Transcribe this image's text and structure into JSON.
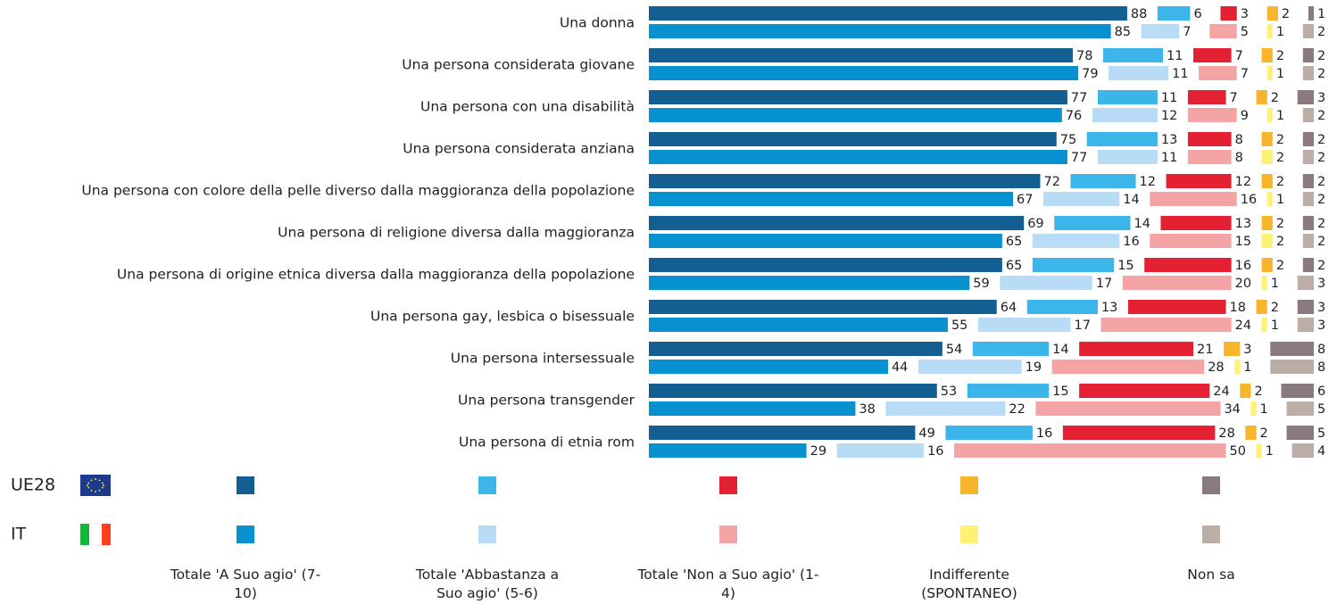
{
  "chart_data": {
    "type": "bar",
    "orientation": "horizontal",
    "stacked": true,
    "categories": [
      "Una donna",
      "Una persona considerata giovane",
      "Una persona con una disabilità",
      "Una persona considerata anziana",
      "Una persona con colore della pelle diverso dalla maggioranza della popolazione",
      "Una persona di religione diversa dalla maggioranza",
      "Una persona di origine etnica diversa dalla maggioranza della popolazione",
      "Una persona gay, lesbica o bisessuale",
      "Una persona intersessuale",
      "Una persona transgender",
      "Una persona di etnia rom"
    ],
    "groups": [
      "UE28",
      "IT"
    ],
    "series": [
      {
        "name": "Totale 'A Suo agio' (7-10)",
        "colors": [
          "#135f92",
          "#0891d1"
        ],
        "values": [
          [
            88,
            78,
            77,
            75,
            72,
            69,
            65,
            64,
            54,
            53,
            49
          ],
          [
            85,
            79,
            76,
            77,
            67,
            65,
            59,
            55,
            44,
            38,
            29
          ]
        ]
      },
      {
        "name": "Totale 'Abbastanza a Suo agio' (5-6)",
        "colors": [
          "#3bb5ea",
          "#b8dcf6"
        ],
        "values": [
          [
            6,
            11,
            11,
            13,
            12,
            14,
            15,
            13,
            14,
            15,
            16
          ],
          [
            7,
            11,
            12,
            11,
            14,
            16,
            17,
            17,
            19,
            22,
            16
          ]
        ]
      },
      {
        "name": "Totale 'Non a Suo agio' (1-4)",
        "colors": [
          "#e32132",
          "#f4a4a4"
        ],
        "values": [
          [
            3,
            7,
            7,
            8,
            12,
            13,
            16,
            18,
            21,
            24,
            28
          ],
          [
            5,
            7,
            9,
            8,
            16,
            15,
            20,
            24,
            28,
            34,
            50
          ]
        ]
      },
      {
        "name": "Indifferente (SPONTANEO)",
        "colors": [
          "#f6b52a",
          "#fff176"
        ],
        "values": [
          [
            2,
            2,
            2,
            2,
            2,
            2,
            2,
            2,
            3,
            2,
            2
          ],
          [
            1,
            1,
            1,
            2,
            1,
            2,
            1,
            1,
            1,
            1,
            1
          ]
        ]
      },
      {
        "name": "Non sa",
        "colors": [
          "#8a7a80",
          "#bcaea6"
        ],
        "values": [
          [
            1,
            2,
            3,
            2,
            2,
            2,
            2,
            3,
            8,
            6,
            5
          ],
          [
            2,
            2,
            2,
            2,
            2,
            2,
            3,
            3,
            8,
            5,
            4
          ]
        ]
      }
    ]
  }
}
